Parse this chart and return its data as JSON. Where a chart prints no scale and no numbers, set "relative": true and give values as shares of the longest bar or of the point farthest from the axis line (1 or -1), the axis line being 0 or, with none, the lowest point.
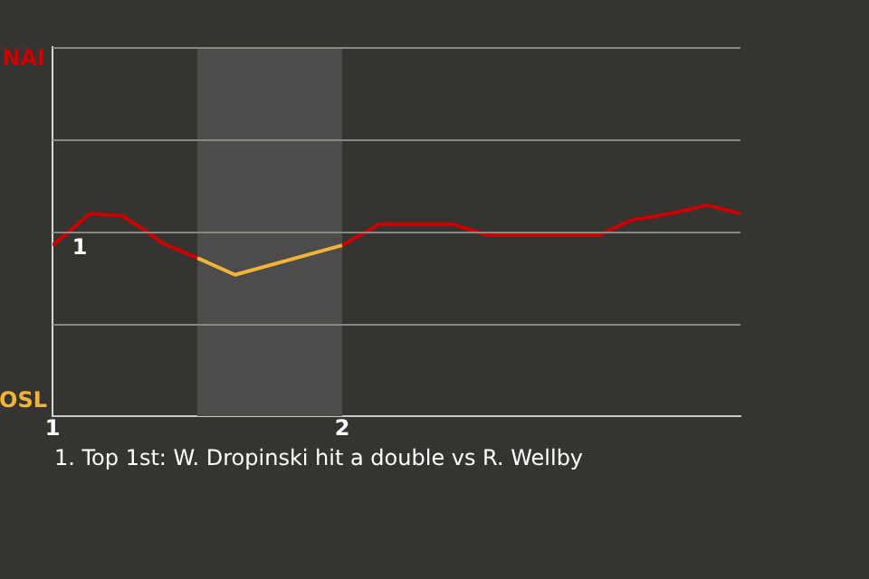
{
  "chart_data": {
    "type": "line",
    "relative": true,
    "xlim": [
      1,
      3.375
    ],
    "xticks": [
      1,
      2
    ],
    "ref_lines": [
      {
        "axis": "y",
        "value": 0.4375,
        "color": "#8a8884"
      },
      {
        "axis": "y",
        "value": 0.875,
        "color": "#8a8884"
      },
      {
        "axis": "y",
        "value": 1.3125,
        "color": "#8a8884"
      },
      {
        "axis": "y",
        "value": 1.75,
        "color": "#8a8884"
      }
    ],
    "legend": false,
    "marker": "none",
    "series": [
      {
        "color": "#cc0000",
        "x": [
          1,
          1.13,
          1.24,
          1.32,
          1.38,
          1.5
        ],
        "values": [
          0.81,
          0.96,
          0.95,
          0.88,
          0.82,
          0.75
        ]
      },
      {
        "color": "#f0b43c",
        "x": [
          1.5,
          1.63,
          2
        ],
        "values": [
          0.75,
          0.67,
          0.81
        ]
      },
      {
        "color": "#cc0000",
        "x": [
          2,
          2.13,
          2.38,
          2.5,
          2.89,
          3,
          3.13,
          3.26,
          3.375
        ],
        "values": [
          0.81,
          0.91,
          0.91,
          0.86,
          0.86,
          0.93,
          0.96,
          1,
          0.96
        ]
      }
    ],
    "bands": [
      {
        "axis": "x",
        "from": 1.5,
        "to": 2,
        "color": "#4d4c4a"
      }
    ],
    "annotations": [
      "NAI",
      "OSL",
      "1",
      "1. Top 1st: W. Dropinski hit a double vs R. Wellby"
    ]
  }
}
